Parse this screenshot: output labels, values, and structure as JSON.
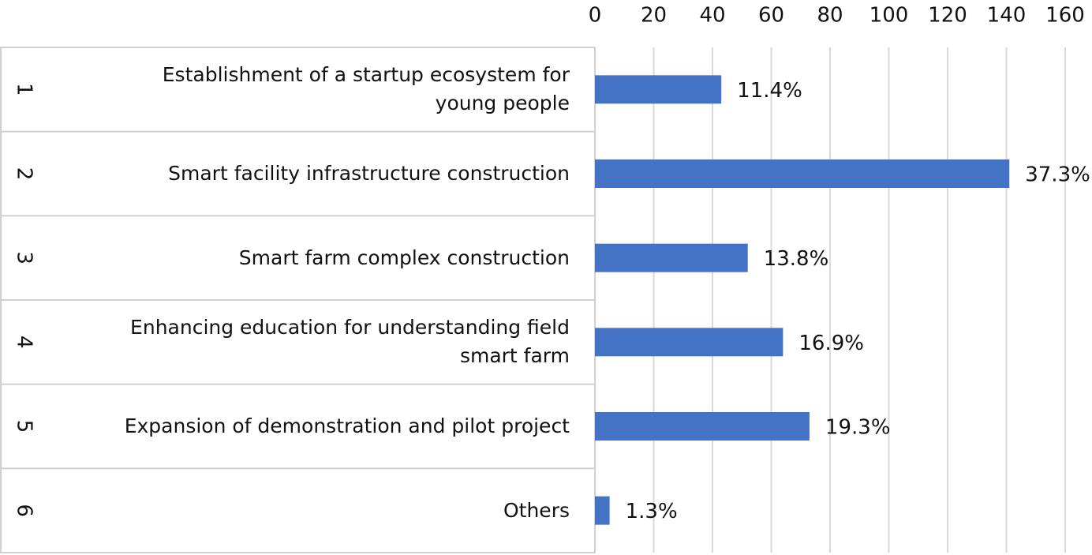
{
  "chart_data": {
    "type": "bar",
    "orientation": "horizontal",
    "row_numbers": [
      1,
      2,
      3,
      4,
      5,
      6
    ],
    "categories": [
      "Establishment of a startup ecosystem for young people",
      "Smart facility infrastructure construction",
      "Smart farm complex construction",
      "Enhancing education for understanding field smart farm",
      "Expansion of demonstration and pilot project",
      "Others"
    ],
    "values": [
      43,
      141,
      52,
      64,
      73,
      5
    ],
    "value_labels": [
      "11.4%",
      "37.3%",
      "13.8%",
      "16.9%",
      "19.3%",
      "1.3%"
    ],
    "color": "#4472c4",
    "xlim": [
      0,
      160
    ],
    "xticks": [
      0,
      20,
      40,
      60,
      80,
      100,
      120,
      140,
      160
    ],
    "grid": true
  }
}
